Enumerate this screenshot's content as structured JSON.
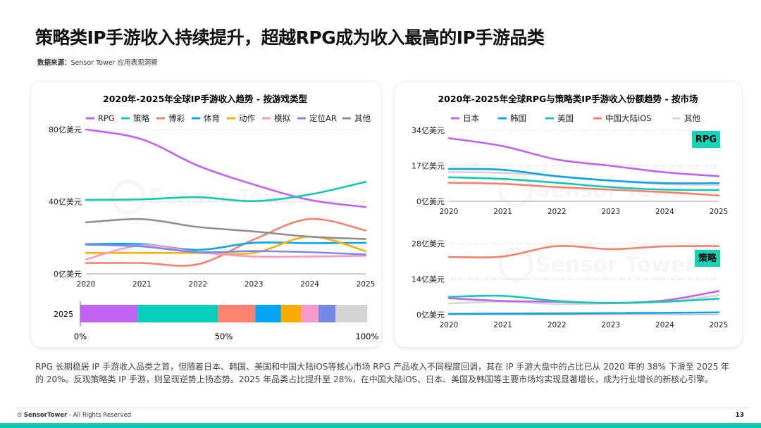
{
  "header": {
    "title": "策略类IP手游收入持续提升，超越RPG成为收入最高的IP手游品类",
    "source_label": "数据来源：",
    "source_text": "Sensor Tower 应用表现洞察"
  },
  "chart_data": [
    {
      "type": "line",
      "title": "2020年-2025年全球IP手游收入趋势 - 按游戏类型",
      "xlabel": "",
      "ylabel": "",
      "x": [
        "2020",
        "2021",
        "2022",
        "2023",
        "2024",
        "2025"
      ],
      "ylim": [
        0,
        80
      ],
      "yticks": [
        "0亿美元",
        "40亿美元",
        "80亿美元"
      ],
      "ytick_values": [
        0,
        40,
        80
      ],
      "unit": "亿美元",
      "legend": "top",
      "grid": true,
      "series": [
        {
          "name": "RPG",
          "color": "#c063f2",
          "values": [
            80,
            74.6,
            60,
            49.5,
            41,
            37
          ]
        },
        {
          "name": "策略",
          "color": "#14c9b0",
          "values": [
            41,
            41.3,
            42.5,
            40.3,
            44,
            51
          ]
        },
        {
          "name": "博彩",
          "color": "#f4806e",
          "values": [
            6,
            6,
            5.3,
            19,
            30.4,
            24
          ]
        },
        {
          "name": "体育",
          "color": "#0ea3ea",
          "values": [
            16.5,
            16.5,
            13.3,
            17.2,
            17,
            17.2
          ]
        },
        {
          "name": "动作",
          "color": "#f7b011",
          "values": [
            11.6,
            11.6,
            11.6,
            11.6,
            20.6,
            12.6
          ]
        },
        {
          "name": "模拟",
          "color": "#f79ac8",
          "values": [
            8,
            15.8,
            12,
            9.6,
            9.6,
            10
          ]
        },
        {
          "name": "定位AR",
          "color": "#7a8ae6",
          "values": [
            16.2,
            15.2,
            12,
            12.6,
            12,
            10.7
          ]
        },
        {
          "name": "其他",
          "color": "#8f8f8f",
          "values": [
            28.5,
            30.3,
            26,
            23.5,
            20.6,
            19.3
          ]
        }
      ]
    },
    {
      "type": "bar",
      "stacked": true,
      "orientation": "horizontal",
      "categories": [
        "2025"
      ],
      "xlim": [
        0,
        100
      ],
      "xticks": [
        "0%",
        "50%",
        "100%"
      ],
      "series": [
        {
          "name": "RPG",
          "color": "#c063f2",
          "values": [
            20
          ]
        },
        {
          "name": "策略",
          "color": "#06ceb9",
          "values": [
            28
          ]
        },
        {
          "name": "博彩",
          "color": "#ff8170",
          "values": [
            13
          ]
        },
        {
          "name": "体育",
          "color": "#00a5f5",
          "values": [
            9
          ]
        },
        {
          "name": "动作",
          "color": "#fbaa00",
          "values": [
            7
          ]
        },
        {
          "name": "模拟",
          "color": "#fa9ac9",
          "values": [
            6
          ]
        },
        {
          "name": "定位AR",
          "color": "#7489e5",
          "values": [
            6
          ]
        },
        {
          "name": "其他",
          "color": "#d4d4d4",
          "values": [
            11
          ]
        }
      ]
    },
    {
      "type": "line",
      "title": "2020年-2025年全球RPG与策略类IP手游收入份额趋势 - 按市场",
      "x": [
        "2020",
        "2021",
        "2022",
        "2023",
        "2024",
        "2025"
      ],
      "legend": "top",
      "grid": true,
      "legend_items": [
        {
          "name": "日本",
          "color": "#c063f2"
        },
        {
          "name": "韩国",
          "color": "#0ea3ea"
        },
        {
          "name": "美国",
          "color": "#14c9b0"
        },
        {
          "name": "中国大陆iOS",
          "color": "#f4806e"
        },
        {
          "name": "其他",
          "color": "#d6d6d6"
        }
      ],
      "panels": [
        {
          "label": "RPG",
          "ylim": [
            0,
            34
          ],
          "yticks": [
            "0亿美元",
            "17亿美元",
            "34亿美元"
          ],
          "ytick_values": [
            0,
            17,
            34
          ],
          "series": [
            {
              "name": "其他",
              "color": "#d6d6d6",
              "values": [
                14,
                13.6,
                12,
                9.9,
                8.2,
                7.9
              ]
            },
            {
              "name": "日本",
              "color": "#c063f2",
              "values": [
                30.2,
                26.4,
                20,
                17,
                13.9,
                12
              ]
            },
            {
              "name": "韩国",
              "color": "#0ea3ea",
              "values": [
                15.5,
                15.1,
                12,
                9.9,
                8.7,
                8.7
              ]
            },
            {
              "name": "美国",
              "color": "#14c9b0",
              "values": [
                11.5,
                10.7,
                8.9,
                6.8,
                5.6,
                5.4
              ]
            },
            {
              "name": "中国大陆iOS",
              "color": "#f4806e",
              "values": [
                8.9,
                8.4,
                6.8,
                5.6,
                4.4,
                2.8
              ]
            }
          ]
        },
        {
          "label": "策略",
          "ylim": [
            0,
            28
          ],
          "yticks": [
            "0亿美元",
            "14亿美元",
            "28亿美元"
          ],
          "ytick_values": [
            0,
            14,
            28
          ],
          "series": [
            {
              "name": "其他",
              "color": "#d6d6d6",
              "values": [
                4.4,
                5.1,
                4.2,
                4.4,
                5.1,
                7.6
              ]
            },
            {
              "name": "日本",
              "color": "#c063f2",
              "values": [
                6.5,
                5.4,
                5.1,
                4.6,
                5.6,
                9.3
              ]
            },
            {
              "name": "美国",
              "color": "#14c9b0",
              "values": [
                7,
                7.4,
                5.4,
                4.6,
                5.1,
                6.3
              ]
            },
            {
              "name": "韩国",
              "color": "#0ea3ea",
              "values": [
                0.3,
                0.4,
                0.5,
                0.6,
                0.7,
                0.9
              ]
            },
            {
              "name": "中国大陆iOS",
              "color": "#f4806e",
              "values": [
                22.7,
                22.9,
                27,
                25.8,
                26.9,
                27
              ]
            }
          ]
        }
      ]
    }
  ],
  "description": "RPG 长期稳居 IP 手游收入品类之首，但随着日本、韩国、美国和中国大陆iOS等核心市场 RPG 产品收入不同程度回调，其在 IP 手游大盘中的占比已从 2020 年的 38% 下滑至 2025 年的 20%。反观策略类 IP 手游，则呈现逆势上扬态势。2025 年品类占比提升至 28%，在中国大陆iOS、日本、美国及韩国等主要市场均实现显著增长，成为行业增长的新核心引擎。",
  "footer": {
    "brand": "SensorTower",
    "rights": " - All Rights Reserved",
    "page": "13"
  },
  "watermark": "Sensor Tower",
  "accent": "#13c6b3"
}
